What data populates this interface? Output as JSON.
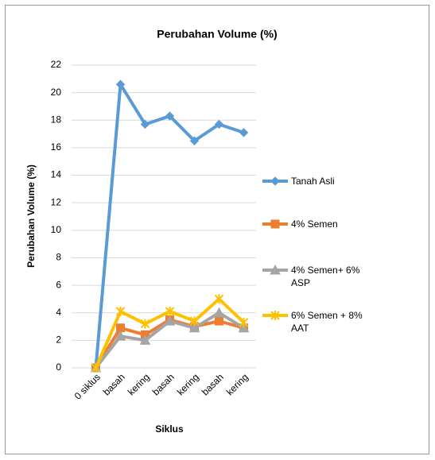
{
  "chart_data": {
    "type": "line",
    "title": "Perubahan Volume (%)",
    "x_label": "Siklus",
    "y_label": "Perubahan Volume (%)",
    "categories": [
      "0 siklus",
      "basah",
      "kering",
      "basah",
      "kering",
      "basah",
      "kering"
    ],
    "series": [
      {
        "name": "Tanah Asli",
        "color": "#5b9bd5",
        "marker": "diamond",
        "values": [
          0,
          20.6,
          17.7,
          18.3,
          16.5,
          17.7,
          17.1
        ]
      },
      {
        "name": "4% Semen",
        "color": "#ed7d31",
        "marker": "square",
        "values": [
          0,
          2.9,
          2.4,
          3.5,
          3.0,
          3.4,
          2.9
        ]
      },
      {
        "name": "4% Semen+ 6% ASP",
        "color": "#a5a5a5",
        "marker": "triangle",
        "values": [
          0,
          2.3,
          2.0,
          3.4,
          2.9,
          4.0,
          2.9
        ]
      },
      {
        "name": "6% Semen + 8% AAT",
        "color": "#ffc000",
        "marker": "x",
        "values": [
          0,
          4.1,
          3.2,
          4.1,
          3.4,
          5.0,
          3.3
        ]
      }
    ],
    "ylim": [
      0,
      22
    ],
    "yticks": [
      0,
      2,
      4,
      6,
      8,
      10,
      12,
      14,
      16,
      18,
      20,
      22
    ],
    "grid": true,
    "legend": "right"
  }
}
